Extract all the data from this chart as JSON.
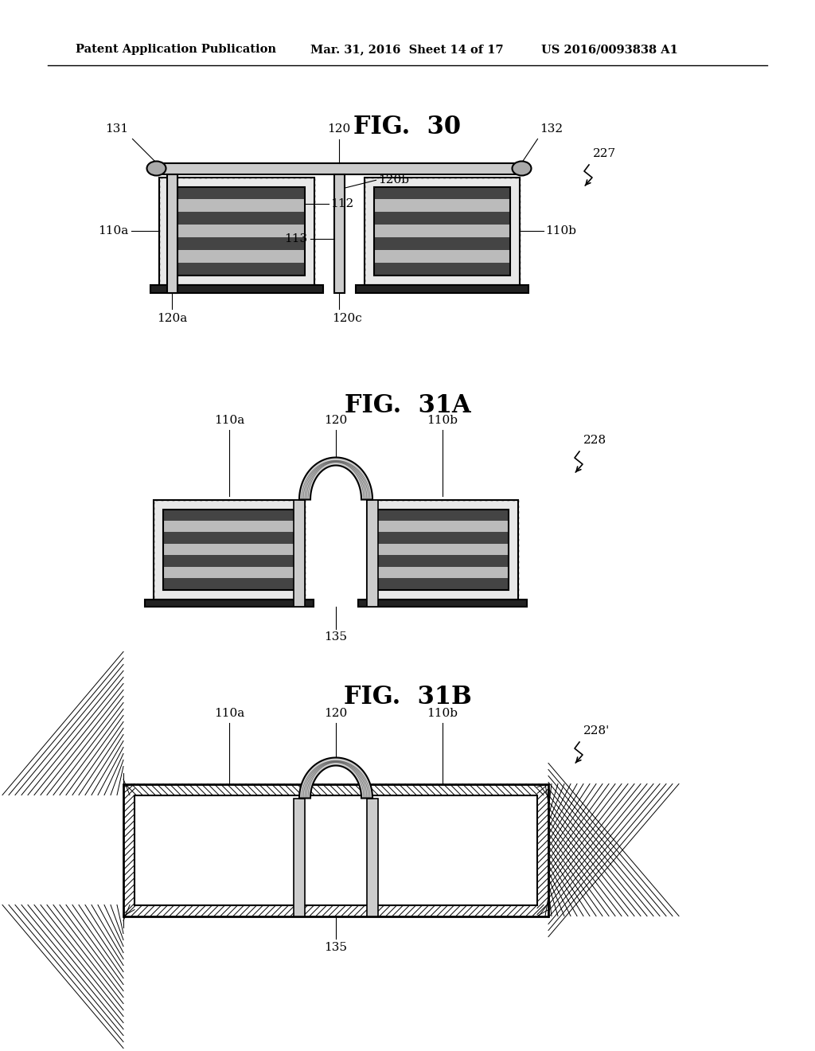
{
  "bg_color": "#ffffff",
  "header_text": "Patent Application Publication",
  "header_date": "Mar. 31, 2016  Sheet 14 of 17",
  "header_patent": "US 2016/0093838 A1",
  "fig30_title": "FIG.  30",
  "fig31a_title": "FIG.  31A",
  "fig31b_title": "FIG.  31B",
  "title_fontsize": 22,
  "label_fontsize": 11,
  "header_fontsize": 10.5
}
